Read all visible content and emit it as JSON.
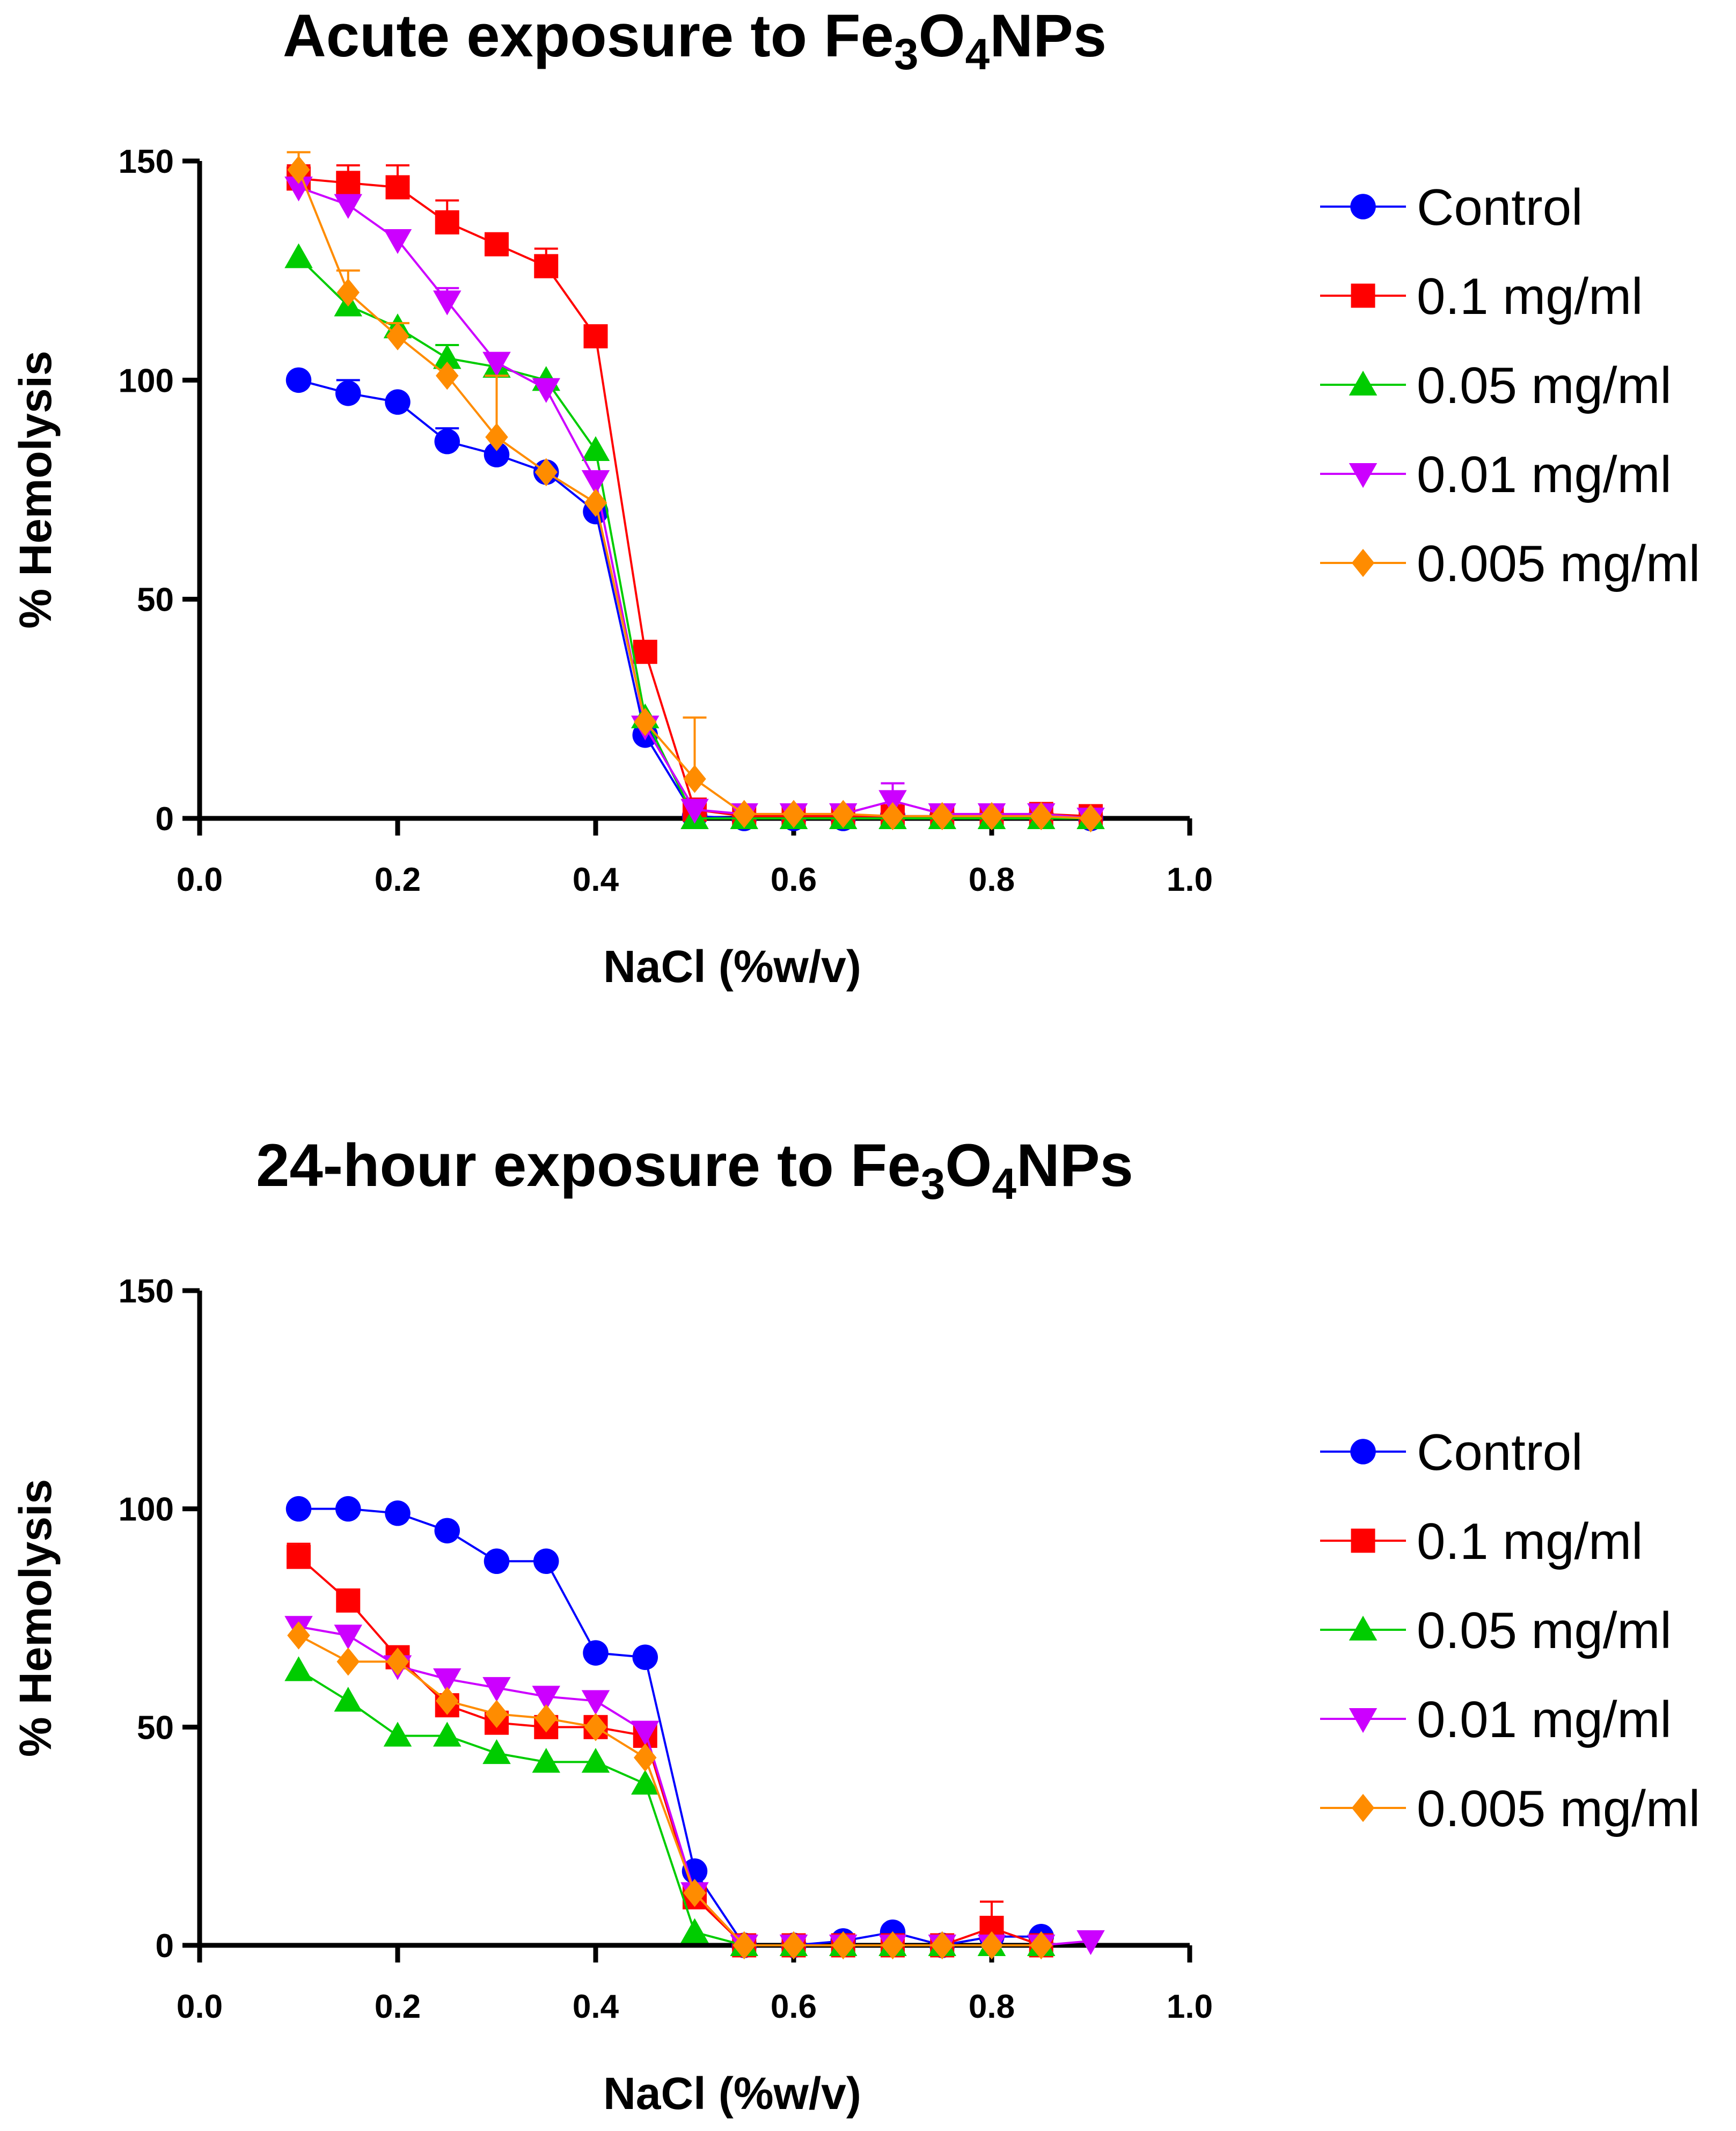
{
  "chart_data": [
    {
      "type": "line",
      "title": "Acute exposure to Fe3O4NPs",
      "title_parts": {
        "prefix": "Acute exposure to Fe",
        "sub1": "3",
        "mid": "O",
        "sub2": "4",
        "suffix": "NPs"
      },
      "xlabel": "NaCl (%w/v)",
      "ylabel": "% Hemolysis",
      "xlim": [
        0.0,
        1.0
      ],
      "ylim": [
        0,
        150
      ],
      "x_ticks": [
        0.0,
        0.2,
        0.4,
        0.6,
        0.8,
        1.0
      ],
      "x_tick_labels": [
        "0.0",
        "0.2",
        "0.4",
        "0.6",
        "0.8",
        "1.0"
      ],
      "y_ticks": [
        0,
        50,
        100,
        150
      ],
      "y_tick_labels": [
        "0",
        "50",
        "100",
        "150"
      ],
      "legend_position": "right",
      "series": [
        {
          "name": "Control",
          "color": "#0000ff",
          "marker": "circle",
          "x": [
            0.1,
            0.15,
            0.2,
            0.25,
            0.3,
            0.35,
            0.4,
            0.45,
            0.5,
            0.55,
            0.6,
            0.65,
            0.7,
            0.75,
            0.8,
            0.85,
            0.9
          ],
          "values": [
            100,
            97,
            95,
            86,
            83,
            79,
            70,
            19,
            0.5,
            0,
            0,
            0,
            0.5,
            0.5,
            0.5,
            0.5,
            0
          ],
          "errors": [
            0,
            3,
            0,
            3,
            0,
            0,
            0,
            1,
            0,
            0,
            0,
            0,
            0,
            0,
            0,
            0,
            0
          ]
        },
        {
          "name": "0.1 mg/ml",
          "color": "#ff0000",
          "marker": "square",
          "x": [
            0.1,
            0.15,
            0.2,
            0.25,
            0.3,
            0.35,
            0.4,
            0.45,
            0.5,
            0.55,
            0.6,
            0.65,
            0.7,
            0.75,
            0.8,
            0.85,
            0.9
          ],
          "values": [
            146,
            145,
            144,
            136,
            131,
            126,
            110,
            38,
            2,
            0.5,
            0.5,
            0.5,
            0.5,
            0.5,
            0.5,
            1,
            0.5
          ],
          "errors": [
            3,
            4,
            5,
            5,
            0,
            4,
            0,
            0,
            0,
            0,
            0,
            0,
            0,
            0,
            0,
            0,
            0
          ]
        },
        {
          "name": "0.05 mg/ml",
          "color": "#00cc00",
          "marker": "triangle-up",
          "x": [
            0.1,
            0.15,
            0.2,
            0.25,
            0.3,
            0.35,
            0.4,
            0.45,
            0.5,
            0.55,
            0.6,
            0.65,
            0.7,
            0.75,
            0.8,
            0.85,
            0.9
          ],
          "values": [
            128,
            117,
            112,
            105,
            103,
            100,
            84,
            23,
            0,
            0,
            0,
            0,
            0,
            0,
            0,
            0,
            0
          ],
          "errors": [
            0,
            0,
            0,
            3,
            0,
            0,
            0,
            0,
            0,
            0,
            0,
            0,
            0,
            0,
            0,
            0,
            0
          ]
        },
        {
          "name": "0.01 mg/ml",
          "color": "#cc00ff",
          "marker": "triangle-down",
          "x": [
            0.1,
            0.15,
            0.2,
            0.25,
            0.3,
            0.35,
            0.4,
            0.45,
            0.5,
            0.55,
            0.6,
            0.65,
            0.7,
            0.75,
            0.8,
            0.85,
            0.9
          ],
          "values": [
            144,
            140,
            132,
            118,
            104,
            98,
            77,
            21,
            2,
            1,
            1,
            1,
            4,
            1,
            1,
            1,
            0
          ],
          "errors": [
            0,
            0,
            0,
            3,
            0,
            0,
            0,
            0,
            0,
            0,
            0,
            0,
            4,
            0,
            0,
            0,
            0
          ]
        },
        {
          "name": "0.005 mg/ml",
          "color": "#ff8c00",
          "marker": "diamond",
          "x": [
            0.1,
            0.15,
            0.2,
            0.25,
            0.3,
            0.35,
            0.4,
            0.45,
            0.5,
            0.55,
            0.6,
            0.65,
            0.7,
            0.75,
            0.8,
            0.85,
            0.9
          ],
          "values": [
            148,
            120,
            110,
            101,
            87,
            79,
            72,
            22,
            9,
            1,
            1,
            1,
            0.5,
            0.5,
            0.5,
            0.5,
            0
          ],
          "errors": [
            4,
            5,
            3,
            0,
            14,
            0,
            0,
            0,
            14,
            0,
            0,
            0,
            0,
            0,
            0,
            0,
            0
          ]
        }
      ]
    },
    {
      "type": "line",
      "title": "24-hour exposure to Fe3O4NPs",
      "title_parts": {
        "prefix": "24-hour exposure to Fe",
        "sub1": "3",
        "mid": "O",
        "sub2": "4",
        "suffix": "NPs"
      },
      "xlabel": "NaCl (%w/v)",
      "ylabel": "% Hemolysis",
      "xlim": [
        0.0,
        1.0
      ],
      "ylim": [
        0,
        150
      ],
      "x_ticks": [
        0.0,
        0.2,
        0.4,
        0.6,
        0.8,
        1.0
      ],
      "x_tick_labels": [
        "0.0",
        "0.2",
        "0.4",
        "0.6",
        "0.8",
        "1.0"
      ],
      "y_ticks": [
        0,
        50,
        100,
        150
      ],
      "y_tick_labels": [
        "0",
        "50",
        "100",
        "150"
      ],
      "legend_position": "right",
      "series": [
        {
          "name": "Control",
          "color": "#0000ff",
          "marker": "circle",
          "x": [
            0.1,
            0.15,
            0.2,
            0.25,
            0.3,
            0.35,
            0.4,
            0.45,
            0.5,
            0.55,
            0.6,
            0.65,
            0.7,
            0.75,
            0.8,
            0.85
          ],
          "values": [
            100,
            100,
            99,
            95,
            88,
            88,
            67,
            66,
            17,
            0,
            0,
            1,
            3,
            0,
            2,
            2
          ],
          "errors": [
            0,
            0,
            0,
            0,
            0,
            0,
            0,
            0,
            0,
            0,
            0,
            0,
            0,
            0,
            0,
            0
          ]
        },
        {
          "name": "0.1 mg/ml",
          "color": "#ff0000",
          "marker": "square",
          "x": [
            0.1,
            0.15,
            0.2,
            0.25,
            0.3,
            0.35,
            0.4,
            0.45,
            0.5,
            0.55,
            0.6,
            0.65,
            0.7,
            0.75,
            0.8,
            0.85
          ],
          "values": [
            89,
            79,
            66,
            55,
            51,
            50,
            50,
            48,
            11,
            0,
            0,
            0,
            0,
            0,
            4,
            0
          ],
          "errors": [
            3,
            0,
            0,
            0,
            0,
            0,
            0,
            0,
            0,
            0,
            0,
            0,
            0,
            0,
            6,
            0
          ]
        },
        {
          "name": "0.05 mg/ml",
          "color": "#00cc00",
          "marker": "triangle-up",
          "x": [
            0.1,
            0.15,
            0.2,
            0.25,
            0.3,
            0.35,
            0.4,
            0.45,
            0.5,
            0.55,
            0.6,
            0.65,
            0.7,
            0.75,
            0.8,
            0.85
          ],
          "values": [
            63,
            56,
            48,
            48,
            44,
            42,
            42,
            37,
            3,
            0,
            0,
            0,
            0,
            0,
            0,
            0
          ],
          "errors": [
            0,
            0,
            0,
            0,
            0,
            0,
            0,
            0,
            0,
            0,
            0,
            0,
            0,
            0,
            0,
            0
          ]
        },
        {
          "name": "0.01 mg/ml",
          "color": "#cc00ff",
          "marker": "triangle-down",
          "x": [
            0.1,
            0.15,
            0.2,
            0.25,
            0.3,
            0.35,
            0.4,
            0.45,
            0.5,
            0.55,
            0.6,
            0.65,
            0.7,
            0.75,
            0.8,
            0.85,
            0.9
          ],
          "values": [
            73,
            71,
            64,
            61,
            59,
            57,
            56,
            49,
            12,
            0,
            0,
            0,
            0,
            0,
            0,
            0,
            1
          ],
          "errors": [
            0,
            0,
            0,
            0,
            0,
            0,
            0,
            0,
            0,
            0,
            0,
            0,
            0,
            0,
            0,
            0,
            0
          ]
        },
        {
          "name": "0.005 mg/ml",
          "color": "#ff8c00",
          "marker": "diamond",
          "x": [
            0.1,
            0.15,
            0.2,
            0.25,
            0.3,
            0.35,
            0.4,
            0.45,
            0.5,
            0.55,
            0.6,
            0.65,
            0.7,
            0.75,
            0.8,
            0.85
          ],
          "values": [
            71,
            65,
            65,
            56,
            53,
            52,
            50,
            43,
            12,
            0,
            0,
            0,
            0,
            0,
            0,
            0
          ],
          "errors": [
            0,
            0,
            0,
            0,
            0,
            0,
            0,
            0,
            0,
            0,
            0,
            0,
            0,
            0,
            0,
            0
          ]
        }
      ]
    }
  ]
}
